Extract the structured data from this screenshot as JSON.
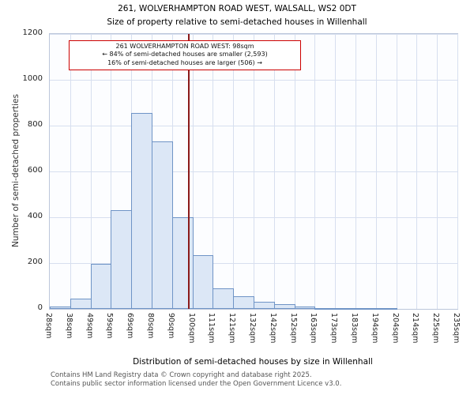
{
  "chart_data": {
    "type": "bar",
    "title": "261, WOLVERHAMPTON ROAD WEST, WALSALL, WS2 0DT",
    "subtitle": "Size of property relative to semi-detached houses in Willenhall",
    "xlabel": "Distribution of semi-detached houses by size in Willenhall",
    "ylabel": "Number of semi-detached properties",
    "ylim": [
      0,
      1200
    ],
    "yticks": [
      0,
      200,
      400,
      600,
      800,
      1000,
      1200
    ],
    "grid": true,
    "bin_labels": [
      "28sqm",
      "38sqm",
      "49sqm",
      "59sqm",
      "69sqm",
      "80sqm",
      "90sqm",
      "100sqm",
      "111sqm",
      "121sqm",
      "132sqm",
      "142sqm",
      "152sqm",
      "163sqm",
      "173sqm",
      "183sqm",
      "194sqm",
      "204sqm",
      "214sqm",
      "225sqm",
      "235sqm"
    ],
    "values": [
      10,
      45,
      195,
      430,
      855,
      730,
      400,
      235,
      90,
      55,
      30,
      20,
      10,
      5,
      3,
      3,
      2,
      0,
      0,
      0
    ],
    "marker": {
      "value": 98,
      "label": "261 WOLVERHAMPTON ROAD WEST"
    },
    "annotation": {
      "line1": "261 WOLVERHAMPTON ROAD WEST: 98sqm",
      "line2": "← 84% of semi-detached houses are smaller (2,593)",
      "line3": "16% of semi-detached houses are larger (506) →"
    },
    "colors": {
      "bar_fill": "#dce7f6",
      "bar_border": "#6f94c6",
      "marker": "#8b1a1a",
      "annotation_border": "#cc0000",
      "grid": "#d7dfef"
    },
    "footer": [
      "Contains HM Land Registry data © Crown copyright and database right 2025.",
      "Contains public sector information licensed under the Open Government Licence v3.0."
    ]
  }
}
